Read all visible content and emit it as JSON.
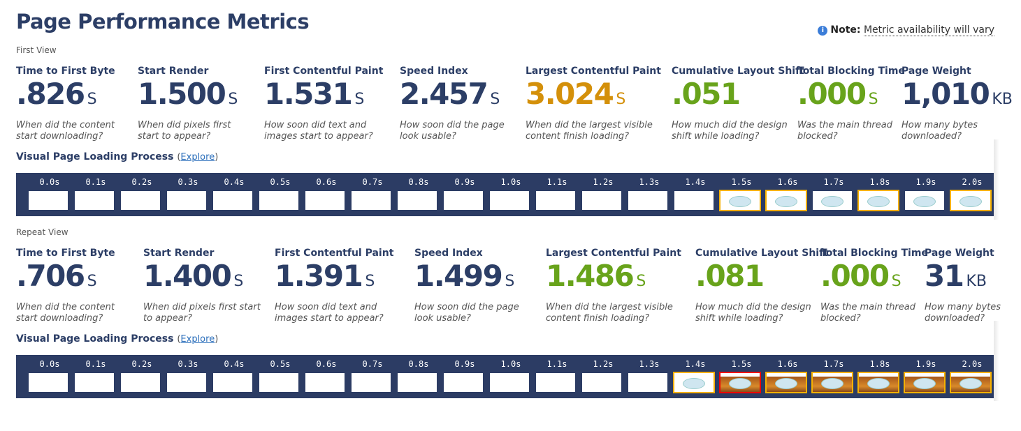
{
  "title": "Page Performance Metrics",
  "note": {
    "label": "Note:",
    "text": "Metric availability will vary",
    "icon": "info-icon"
  },
  "colors": {
    "navy": "#2c3e66",
    "orange": "#d4900a",
    "green": "#68a31b"
  },
  "first_view": {
    "label": "First View",
    "metrics": [
      {
        "label": "Time to First Byte",
        "value": ".826",
        "unit": "S",
        "desc": "When did the content start downloading?",
        "color": "navy"
      },
      {
        "label": "Start Render",
        "value": "1.500",
        "unit": "S",
        "desc": "When did pixels first start to appear?",
        "color": "navy"
      },
      {
        "label": "First Contentful Paint",
        "value": "1.531",
        "unit": "S",
        "desc": "How soon did text and images start to appear?",
        "color": "navy"
      },
      {
        "label": "Speed Index",
        "value": "2.457",
        "unit": "S",
        "desc": "How soon did the page look usable?",
        "color": "navy"
      },
      {
        "label": "Largest Contentful Paint",
        "value": "3.024",
        "unit": "S",
        "desc": "When did the largest visible content finish loading?",
        "color": "orange"
      },
      {
        "label": "Cumulative Layout Shift",
        "value": ".051",
        "unit": "",
        "desc": "How much did the design shift while loading?",
        "color": "green"
      },
      {
        "label": "Total Blocking Time",
        "value": ".000",
        "unit": "S",
        "desc": "Was the main thread blocked?",
        "color": "green"
      },
      {
        "label": "Page Weight",
        "value": "1,010",
        "unit": "KB",
        "desc": "How many bytes downloaded?",
        "color": "navy"
      }
    ],
    "visual": {
      "label": "Visual Page Loading Process",
      "link": "Explore"
    },
    "frames": [
      {
        "t": "0.0s",
        "s": "blank",
        "h": ""
      },
      {
        "t": "0.1s",
        "s": "blank",
        "h": ""
      },
      {
        "t": "0.2s",
        "s": "blank",
        "h": ""
      },
      {
        "t": "0.3s",
        "s": "blank",
        "h": ""
      },
      {
        "t": "0.4s",
        "s": "blank",
        "h": ""
      },
      {
        "t": "0.5s",
        "s": "blank",
        "h": ""
      },
      {
        "t": "0.6s",
        "s": "blank",
        "h": ""
      },
      {
        "t": "0.7s",
        "s": "blank",
        "h": ""
      },
      {
        "t": "0.8s",
        "s": "blank",
        "h": ""
      },
      {
        "t": "0.9s",
        "s": "blank",
        "h": ""
      },
      {
        "t": "1.0s",
        "s": "blank",
        "h": ""
      },
      {
        "t": "1.1s",
        "s": "blank",
        "h": ""
      },
      {
        "t": "1.2s",
        "s": "blank",
        "h": ""
      },
      {
        "t": "1.3s",
        "s": "blank",
        "h": ""
      },
      {
        "t": "1.4s",
        "s": "blank",
        "h": ""
      },
      {
        "t": "1.5s",
        "s": "logo",
        "h": "yellow"
      },
      {
        "t": "1.6s",
        "s": "logo",
        "h": "yellow"
      },
      {
        "t": "1.7s",
        "s": "logo",
        "h": ""
      },
      {
        "t": "1.8s",
        "s": "logo",
        "h": "yellow"
      },
      {
        "t": "1.9s",
        "s": "logo",
        "h": ""
      },
      {
        "t": "2.0s",
        "s": "logo",
        "h": "yellow"
      }
    ]
  },
  "repeat_view": {
    "label": "Repeat View",
    "metrics": [
      {
        "label": "Time to First Byte",
        "value": ".706",
        "unit": "S",
        "desc": "When did the content start downloading?",
        "color": "navy"
      },
      {
        "label": "Start Render",
        "value": "1.400",
        "unit": "S",
        "desc": "When did pixels first start to appear?",
        "color": "navy"
      },
      {
        "label": "First Contentful Paint",
        "value": "1.391",
        "unit": "S",
        "desc": "How soon did text and images start to appear?",
        "color": "navy"
      },
      {
        "label": "Speed Index",
        "value": "1.499",
        "unit": "S",
        "desc": "How soon did the page look usable?",
        "color": "navy"
      },
      {
        "label": "Largest Contentful Paint",
        "value": "1.486",
        "unit": "S",
        "desc": "When did the largest visible content finish loading?",
        "color": "green"
      },
      {
        "label": "Cumulative Layout Shift",
        "value": ".081",
        "unit": "",
        "desc": "How much did the design shift while loading?",
        "color": "green"
      },
      {
        "label": "Total Blocking Time",
        "value": ".000",
        "unit": "S",
        "desc": "Was the main thread blocked?",
        "color": "green"
      },
      {
        "label": "Page Weight",
        "value": "31",
        "unit": "KB",
        "desc": "How many bytes downloaded?",
        "color": "navy"
      }
    ],
    "visual": {
      "label": "Visual Page Loading Process",
      "link": "Explore"
    },
    "frames": [
      {
        "t": "0.0s",
        "s": "blank",
        "h": ""
      },
      {
        "t": "0.1s",
        "s": "blank",
        "h": ""
      },
      {
        "t": "0.2s",
        "s": "blank",
        "h": ""
      },
      {
        "t": "0.3s",
        "s": "blank",
        "h": ""
      },
      {
        "t": "0.4s",
        "s": "blank",
        "h": ""
      },
      {
        "t": "0.5s",
        "s": "blank",
        "h": ""
      },
      {
        "t": "0.6s",
        "s": "blank",
        "h": ""
      },
      {
        "t": "0.7s",
        "s": "blank",
        "h": ""
      },
      {
        "t": "0.8s",
        "s": "blank",
        "h": ""
      },
      {
        "t": "0.9s",
        "s": "blank",
        "h": ""
      },
      {
        "t": "1.0s",
        "s": "blank",
        "h": ""
      },
      {
        "t": "1.1s",
        "s": "blank",
        "h": ""
      },
      {
        "t": "1.2s",
        "s": "blank",
        "h": ""
      },
      {
        "t": "1.3s",
        "s": "blank",
        "h": ""
      },
      {
        "t": "1.4s",
        "s": "logo",
        "h": "yellow"
      },
      {
        "t": "1.5s",
        "s": "orange",
        "h": "red"
      },
      {
        "t": "1.6s",
        "s": "orange",
        "h": "yellow"
      },
      {
        "t": "1.7s",
        "s": "orange",
        "h": "yellow"
      },
      {
        "t": "1.8s",
        "s": "orange",
        "h": "yellow"
      },
      {
        "t": "1.9s",
        "s": "orange",
        "h": "yellow"
      },
      {
        "t": "2.0s",
        "s": "orange",
        "h": "yellow"
      }
    ]
  }
}
